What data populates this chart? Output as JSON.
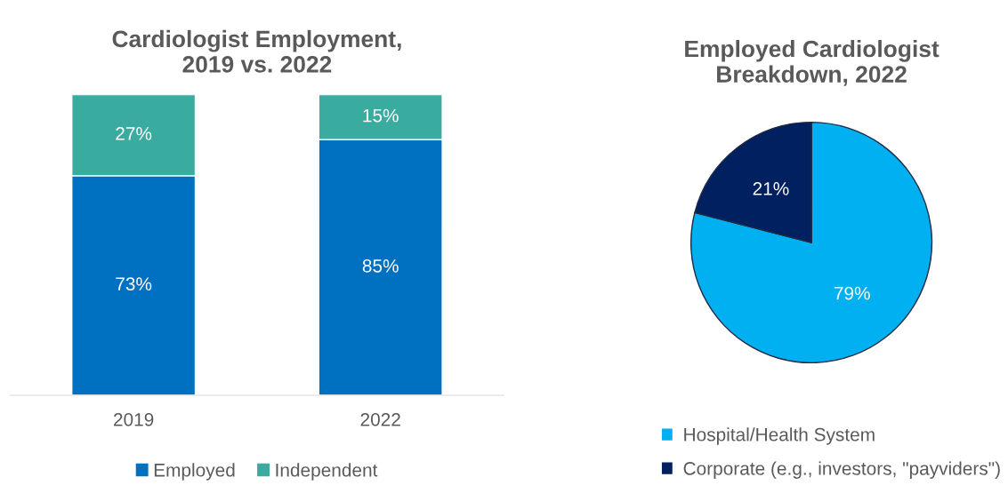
{
  "chart_data": [
    {
      "type": "bar",
      "title": "Cardiologist Employment,\n2019 vs. 2022",
      "categories": [
        "2019",
        "2022"
      ],
      "stacked": true,
      "ylim": [
        0,
        100
      ],
      "tick_labels": "x",
      "legend": "bottom",
      "series": [
        {
          "name": "Employed",
          "color": "#0070c0",
          "values": [
            73,
            85
          ],
          "value_labels": [
            "73%",
            "85%"
          ]
        },
        {
          "name": "Independent",
          "color": "#3aab9f",
          "values": [
            27,
            15
          ],
          "value_labels": [
            "27%",
            "15%"
          ]
        }
      ]
    },
    {
      "type": "pie",
      "title": "Employed Cardiologist\nBreakdown, 2022",
      "categories": [
        "Hospital/Health System",
        "Corporate (e.g., investors, \"payviders\")"
      ],
      "values": [
        79,
        21
      ],
      "colors": [
        "#00b0f0",
        "#002060"
      ],
      "value_labels": [
        "79%",
        "21%"
      ],
      "legend": "bottom"
    }
  ]
}
